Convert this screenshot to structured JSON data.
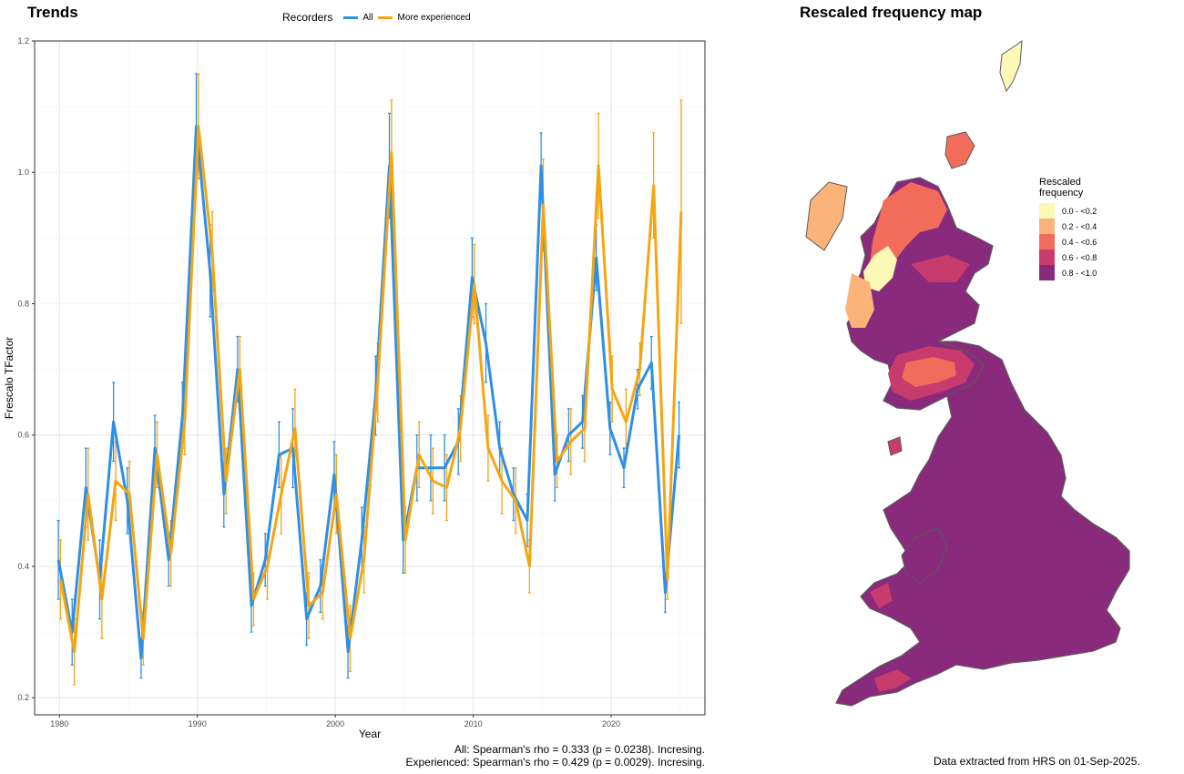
{
  "trends": {
    "title": "Trends"
  },
  "map": {
    "title": "Rescaled frequency map"
  },
  "legend": {
    "title": "Recorders",
    "items": [
      {
        "label": "All",
        "color": "#2e8fe6"
      },
      {
        "label": "More experienced",
        "color": "#f5a512"
      }
    ]
  },
  "stats": {
    "all": "All: Spearman's rho = 0.333 (p = 0.0238). Incresing.",
    "experienced": "Experienced: Spearman's rho = 0.429 (p = 0.0029). Incresing."
  },
  "footer": "Data extracted from HRS on 01-Sep-2025.",
  "map_legend": {
    "title_line1": "Rescaled",
    "title_line2": "frequency",
    "items": [
      {
        "label": "0.0 - <0.2",
        "color": "#fcf8b6"
      },
      {
        "label": "0.2 - <0.4",
        "color": "#fbb37a"
      },
      {
        "label": "0.4 - <0.6",
        "color": "#f26c5b"
      },
      {
        "label": "0.6 - <0.8",
        "color": "#c73b6d"
      },
      {
        "label": "0.8 - <1.0",
        "color": "#8a2a7c"
      }
    ]
  },
  "chart_data": {
    "type": "line",
    "xlabel": "Year",
    "ylabel": "Frescalo TFactor",
    "xlim": [
      1980,
      2025
    ],
    "ylim": [
      0.2,
      1.2
    ],
    "xticks": [
      1980,
      1990,
      2000,
      2010,
      2020
    ],
    "yticks": [
      0.2,
      0.4,
      0.6,
      0.8,
      1.0,
      1.2
    ],
    "yticklabels": [
      "0.2",
      "0.4",
      "0.6",
      "0.8",
      "1.0",
      "1.2"
    ],
    "grid": true,
    "legend_position": "top",
    "x": [
      1980,
      1981,
      1982,
      1983,
      1984,
      1985,
      1986,
      1987,
      1988,
      1989,
      1990,
      1991,
      1992,
      1993,
      1994,
      1995,
      1996,
      1997,
      1998,
      1999,
      2000,
      2001,
      2002,
      2003,
      2004,
      2005,
      2006,
      2007,
      2008,
      2009,
      2010,
      2011,
      2012,
      2013,
      2014,
      2015,
      2016,
      2017,
      2018,
      2019,
      2020,
      2021,
      2022,
      2023,
      2024,
      2025
    ],
    "series": [
      {
        "name": "All",
        "color": "#2e8fe6",
        "values": [
          0.41,
          0.3,
          0.52,
          0.38,
          0.62,
          0.5,
          0.26,
          0.58,
          0.41,
          0.63,
          1.07,
          0.85,
          0.51,
          0.7,
          0.34,
          0.41,
          0.57,
          0.58,
          0.32,
          0.37,
          0.54,
          0.27,
          0.44,
          0.66,
          1.01,
          0.44,
          0.55,
          0.55,
          0.55,
          0.59,
          0.84,
          0.74,
          0.58,
          0.51,
          0.47,
          1.01,
          0.54,
          0.6,
          0.62,
          0.87,
          0.61,
          0.55,
          0.67,
          0.71,
          0.36,
          0.6
        ],
        "err": [
          0.06,
          0.05,
          0.06,
          0.06,
          0.06,
          0.05,
          0.03,
          0.05,
          0.04,
          0.05,
          0.08,
          0.07,
          0.05,
          0.05,
          0.04,
          0.04,
          0.05,
          0.06,
          0.04,
          0.04,
          0.05,
          0.04,
          0.05,
          0.06,
          0.08,
          0.05,
          0.05,
          0.05,
          0.05,
          0.05,
          0.06,
          0.06,
          0.04,
          0.04,
          0.04,
          0.05,
          0.04,
          0.04,
          0.04,
          0.05,
          0.04,
          0.03,
          0.03,
          0.04,
          0.03,
          0.05
        ]
      },
      {
        "name": "More experienced",
        "color": "#f5a512",
        "values": [
          0.38,
          0.27,
          0.51,
          0.35,
          0.53,
          0.51,
          0.29,
          0.57,
          0.42,
          0.62,
          1.07,
          0.88,
          0.53,
          0.7,
          0.35,
          0.4,
          0.51,
          0.61,
          0.34,
          0.36,
          0.51,
          0.29,
          0.41,
          0.68,
          1.03,
          0.44,
          0.57,
          0.53,
          0.52,
          0.61,
          0.83,
          0.58,
          0.53,
          0.5,
          0.4,
          0.95,
          0.56,
          0.59,
          0.61,
          1.01,
          0.67,
          0.62,
          0.7,
          0.98,
          0.38,
          0.94
        ],
        "err": [
          0.06,
          0.05,
          0.07,
          0.06,
          0.06,
          0.05,
          0.04,
          0.05,
          0.05,
          0.05,
          0.08,
          0.06,
          0.05,
          0.05,
          0.04,
          0.05,
          0.06,
          0.06,
          0.05,
          0.04,
          0.06,
          0.05,
          0.05,
          0.06,
          0.08,
          0.05,
          0.05,
          0.05,
          0.05,
          0.05,
          0.06,
          0.05,
          0.05,
          0.05,
          0.04,
          0.07,
          0.04,
          0.05,
          0.05,
          0.08,
          0.05,
          0.05,
          0.04,
          0.08,
          0.03,
          0.17
        ]
      }
    ]
  }
}
